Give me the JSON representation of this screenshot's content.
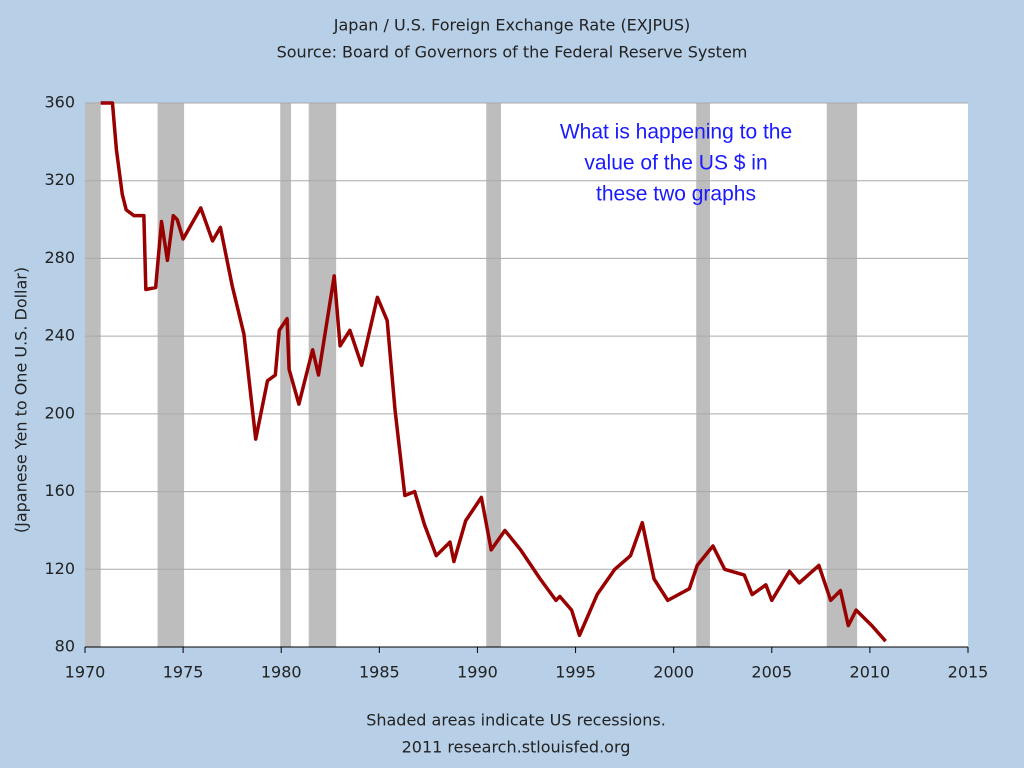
{
  "chart_data": {
    "type": "line",
    "title": "Japan / U.S. Foreign Exchange Rate (EXJPUS)",
    "subtitle": "Source: Board of Governors of the Federal Reserve System",
    "ylabel": "(Japanese Yen to One U.S. Dollar)",
    "annotation": [
      "What is happening to the",
      "value of the US  $ in",
      "these two graphs"
    ],
    "footer": [
      "Shaded areas indicate US recessions.",
      "2011 research.stlouisfed.org"
    ],
    "xlim": [
      1970,
      2015
    ],
    "xticks": [
      1970,
      1975,
      1980,
      1985,
      1990,
      1995,
      2000,
      2005,
      2010,
      2015
    ],
    "ylim": [
      80,
      360
    ],
    "yticks": [
      80,
      120,
      160,
      200,
      240,
      280,
      320,
      360
    ],
    "grid": true,
    "recessions": [
      [
        1970.0,
        1970.8
      ],
      [
        1973.7,
        1975.05
      ],
      [
        1979.95,
        1980.5
      ],
      [
        1981.4,
        1982.8
      ],
      [
        1990.45,
        1991.2
      ],
      [
        2001.15,
        2001.85
      ],
      [
        2007.8,
        2009.35
      ]
    ],
    "series": [
      {
        "name": "EXJPUS",
        "color": "#990000",
        "x": [
          1970.8,
          1971.4,
          1971.6,
          1971.9,
          1972.1,
          1972.5,
          1973.0,
          1973.1,
          1973.6,
          1973.9,
          1974.2,
          1974.5,
          1974.7,
          1975.0,
          1975.9,
          1976.5,
          1976.9,
          1977.5,
          1978.1,
          1978.7,
          1979.3,
          1979.7,
          1979.9,
          1980.3,
          1980.4,
          1980.9,
          1981.6,
          1981.9,
          1982.7,
          1983.0,
          1983.5,
          1984.1,
          1984.9,
          1985.4,
          1985.8,
          1986.3,
          1986.8,
          1987.3,
          1987.9,
          1988.6,
          1988.8,
          1989.4,
          1990.2,
          1990.7,
          1991.4,
          1992.2,
          1993.2,
          1994.0,
          1994.2,
          1994.8,
          1995.2,
          1996.1,
          1997.0,
          1997.8,
          1998.4,
          1999.0,
          1999.7,
          2000.8,
          2001.2,
          2002.0,
          2002.6,
          2003.6,
          2004.0,
          2004.7,
          2005.0,
          2005.9,
          2006.4,
          2007.4,
          2008.0,
          2008.5,
          2008.9,
          2009.3,
          2010.1,
          2010.8
        ],
        "values": [
          360,
          360,
          336,
          313,
          305,
          302,
          302,
          264,
          265,
          299,
          279,
          302,
          300,
          290,
          306,
          289,
          296,
          266,
          241,
          187,
          217,
          220,
          243,
          249,
          223,
          205,
          233,
          220,
          271,
          235,
          243,
          225,
          260,
          248,
          202,
          158,
          160,
          143,
          127,
          134,
          124,
          145,
          157,
          130,
          140,
          130,
          115,
          104,
          106,
          99,
          86,
          107,
          120,
          127,
          144,
          115,
          104,
          110,
          122,
          132,
          120,
          117,
          107,
          112,
          104,
          119,
          113,
          122,
          104,
          109,
          91,
          99,
          91,
          83
        ]
      }
    ]
  }
}
